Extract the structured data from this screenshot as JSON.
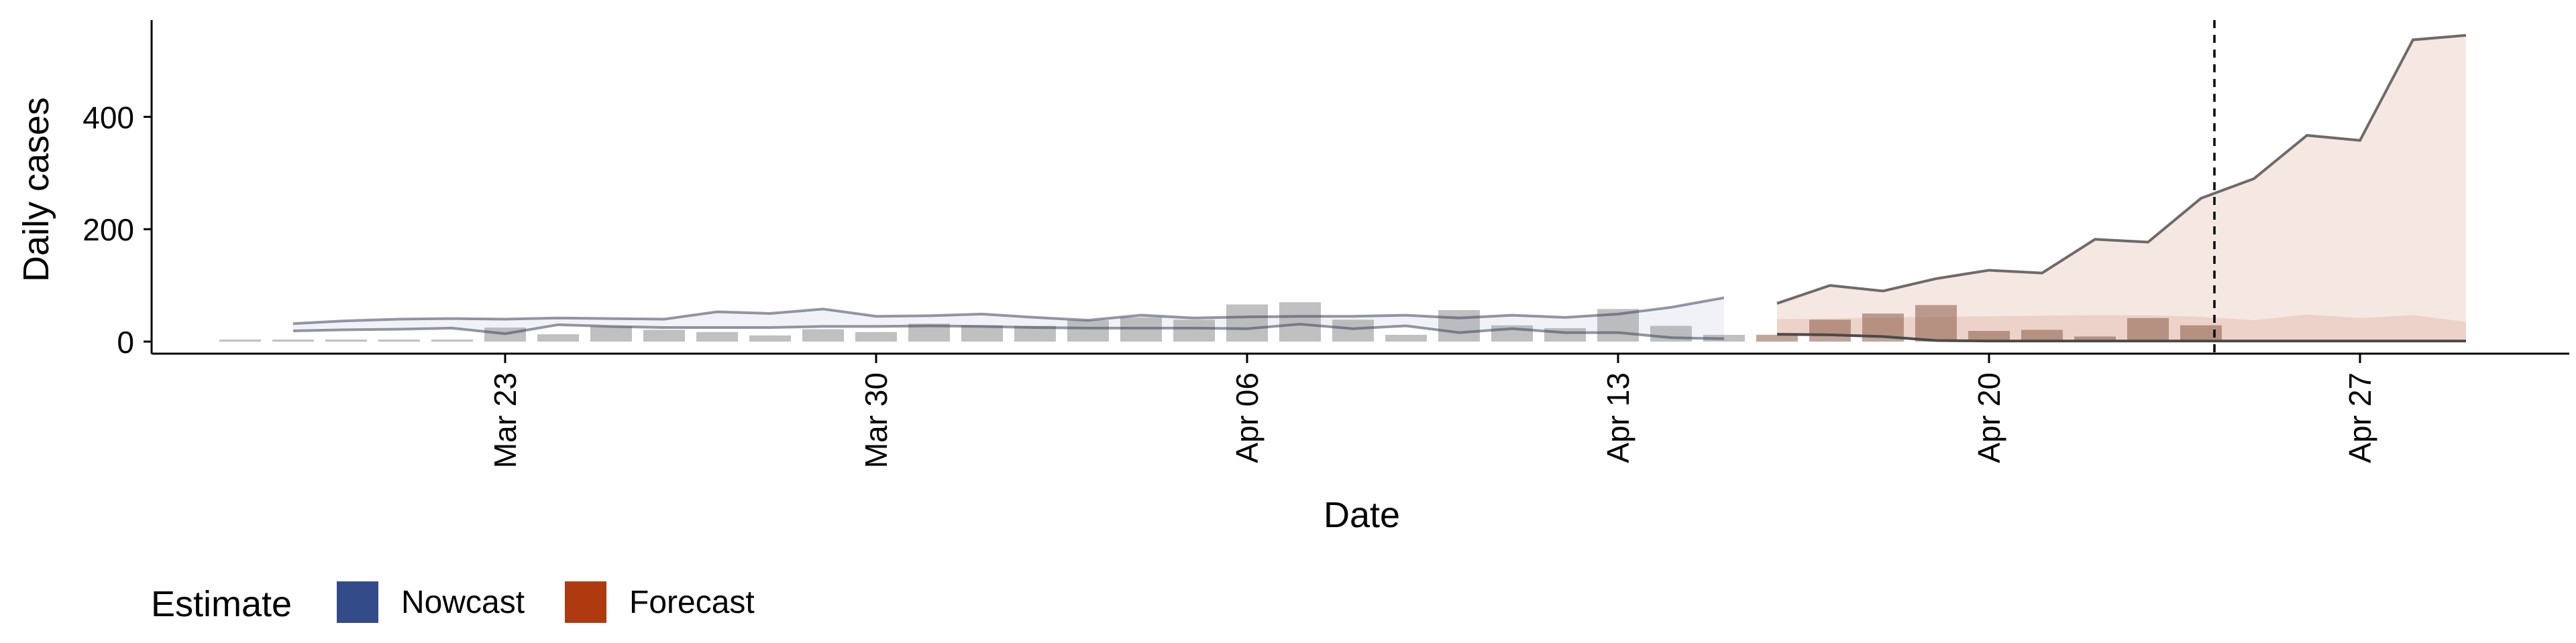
{
  "chart_data": {
    "type": "bar",
    "title": "",
    "xlabel": "Date",
    "ylabel": "Daily cases",
    "ylim": [
      -25,
      580
    ],
    "x_tick_labels": [
      "Mar 23",
      "Mar 30",
      "Apr 06",
      "Apr 13",
      "Apr 20",
      "Apr 27"
    ],
    "x_tick_dates": [
      "2020-03-23",
      "2020-03-30",
      "2020-04-06",
      "2020-04-13",
      "2020-04-20",
      "2020-04-27"
    ],
    "y_tick_labels": [
      "0",
      "200",
      "400"
    ],
    "y_ticks": [
      0,
      200,
      400
    ],
    "grid": false,
    "legend": {
      "title": "Estimate",
      "position": "bottom-left",
      "items": [
        {
          "label": "Nowcast",
          "color": "#344b8a"
        },
        {
          "label": "Forecast",
          "color": "#b03a10"
        }
      ]
    },
    "forecast_date": "2020-04-24",
    "reported_cases": {
      "dates": [
        "2020-03-18",
        "2020-03-19",
        "2020-03-20",
        "2020-03-21",
        "2020-03-22",
        "2020-03-23",
        "2020-03-24",
        "2020-03-25",
        "2020-03-26",
        "2020-03-27",
        "2020-03-28",
        "2020-03-29",
        "2020-03-30",
        "2020-03-31",
        "2020-04-01",
        "2020-04-02",
        "2020-04-03",
        "2020-04-04",
        "2020-04-05",
        "2020-04-06",
        "2020-04-07",
        "2020-04-08",
        "2020-04-09",
        "2020-04-10",
        "2020-04-11",
        "2020-04-12",
        "2020-04-13",
        "2020-04-14",
        "2020-04-15",
        "2020-04-16",
        "2020-04-17",
        "2020-04-18",
        "2020-04-19",
        "2020-04-20",
        "2020-04-21",
        "2020-04-22",
        "2020-04-23",
        "2020-04-24"
      ],
      "values": [
        1,
        1,
        1,
        1,
        1,
        25,
        13,
        27,
        21,
        17,
        11,
        22,
        17,
        32,
        29,
        28,
        38,
        43,
        39,
        66,
        70,
        39,
        12,
        56,
        29,
        24,
        58,
        28,
        12,
        12,
        39,
        50,
        65,
        19,
        21,
        9,
        42,
        29
      ]
    },
    "series": [
      {
        "name": "Nowcast",
        "dates": [
          "2020-03-19",
          "2020-03-20",
          "2020-03-21",
          "2020-03-22",
          "2020-03-23",
          "2020-03-24",
          "2020-03-25",
          "2020-03-26",
          "2020-03-27",
          "2020-03-28",
          "2020-03-29",
          "2020-03-30",
          "2020-03-31",
          "2020-04-01",
          "2020-04-02",
          "2020-04-03",
          "2020-04-04",
          "2020-04-05",
          "2020-04-06",
          "2020-04-07",
          "2020-04-08",
          "2020-04-09",
          "2020-04-10",
          "2020-04-11",
          "2020-04-12",
          "2020-04-13",
          "2020-04-14",
          "2020-04-15"
        ],
        "upper": [
          32,
          37,
          40,
          41,
          40,
          42,
          41,
          40,
          53,
          50,
          58,
          45,
          46,
          49,
          43,
          38,
          47,
          42,
          44,
          45,
          45,
          47,
          42,
          47,
          43,
          49,
          61,
          78
        ],
        "lower": [
          19,
          21,
          22,
          24,
          14,
          30,
          27,
          25,
          25,
          25,
          27,
          27,
          28,
          27,
          25,
          24,
          24,
          24,
          23,
          31,
          23,
          28,
          16,
          23,
          16,
          16,
          7,
          5
        ]
      },
      {
        "name": "Forecast",
        "dates": [
          "2020-04-16",
          "2020-04-17",
          "2020-04-18",
          "2020-04-19",
          "2020-04-20",
          "2020-04-21",
          "2020-04-22",
          "2020-04-23",
          "2020-04-24",
          "2020-04-25",
          "2020-04-26",
          "2020-04-27",
          "2020-04-28",
          "2020-04-29"
        ],
        "upper": [
          68,
          100,
          90,
          112,
          127,
          122,
          182,
          177,
          255,
          290,
          367,
          358,
          537,
          545
        ],
        "lower": [
          13,
          12,
          9,
          2,
          1,
          1,
          1,
          1,
          1,
          1,
          1,
          1,
          1,
          1
        ]
      }
    ]
  }
}
